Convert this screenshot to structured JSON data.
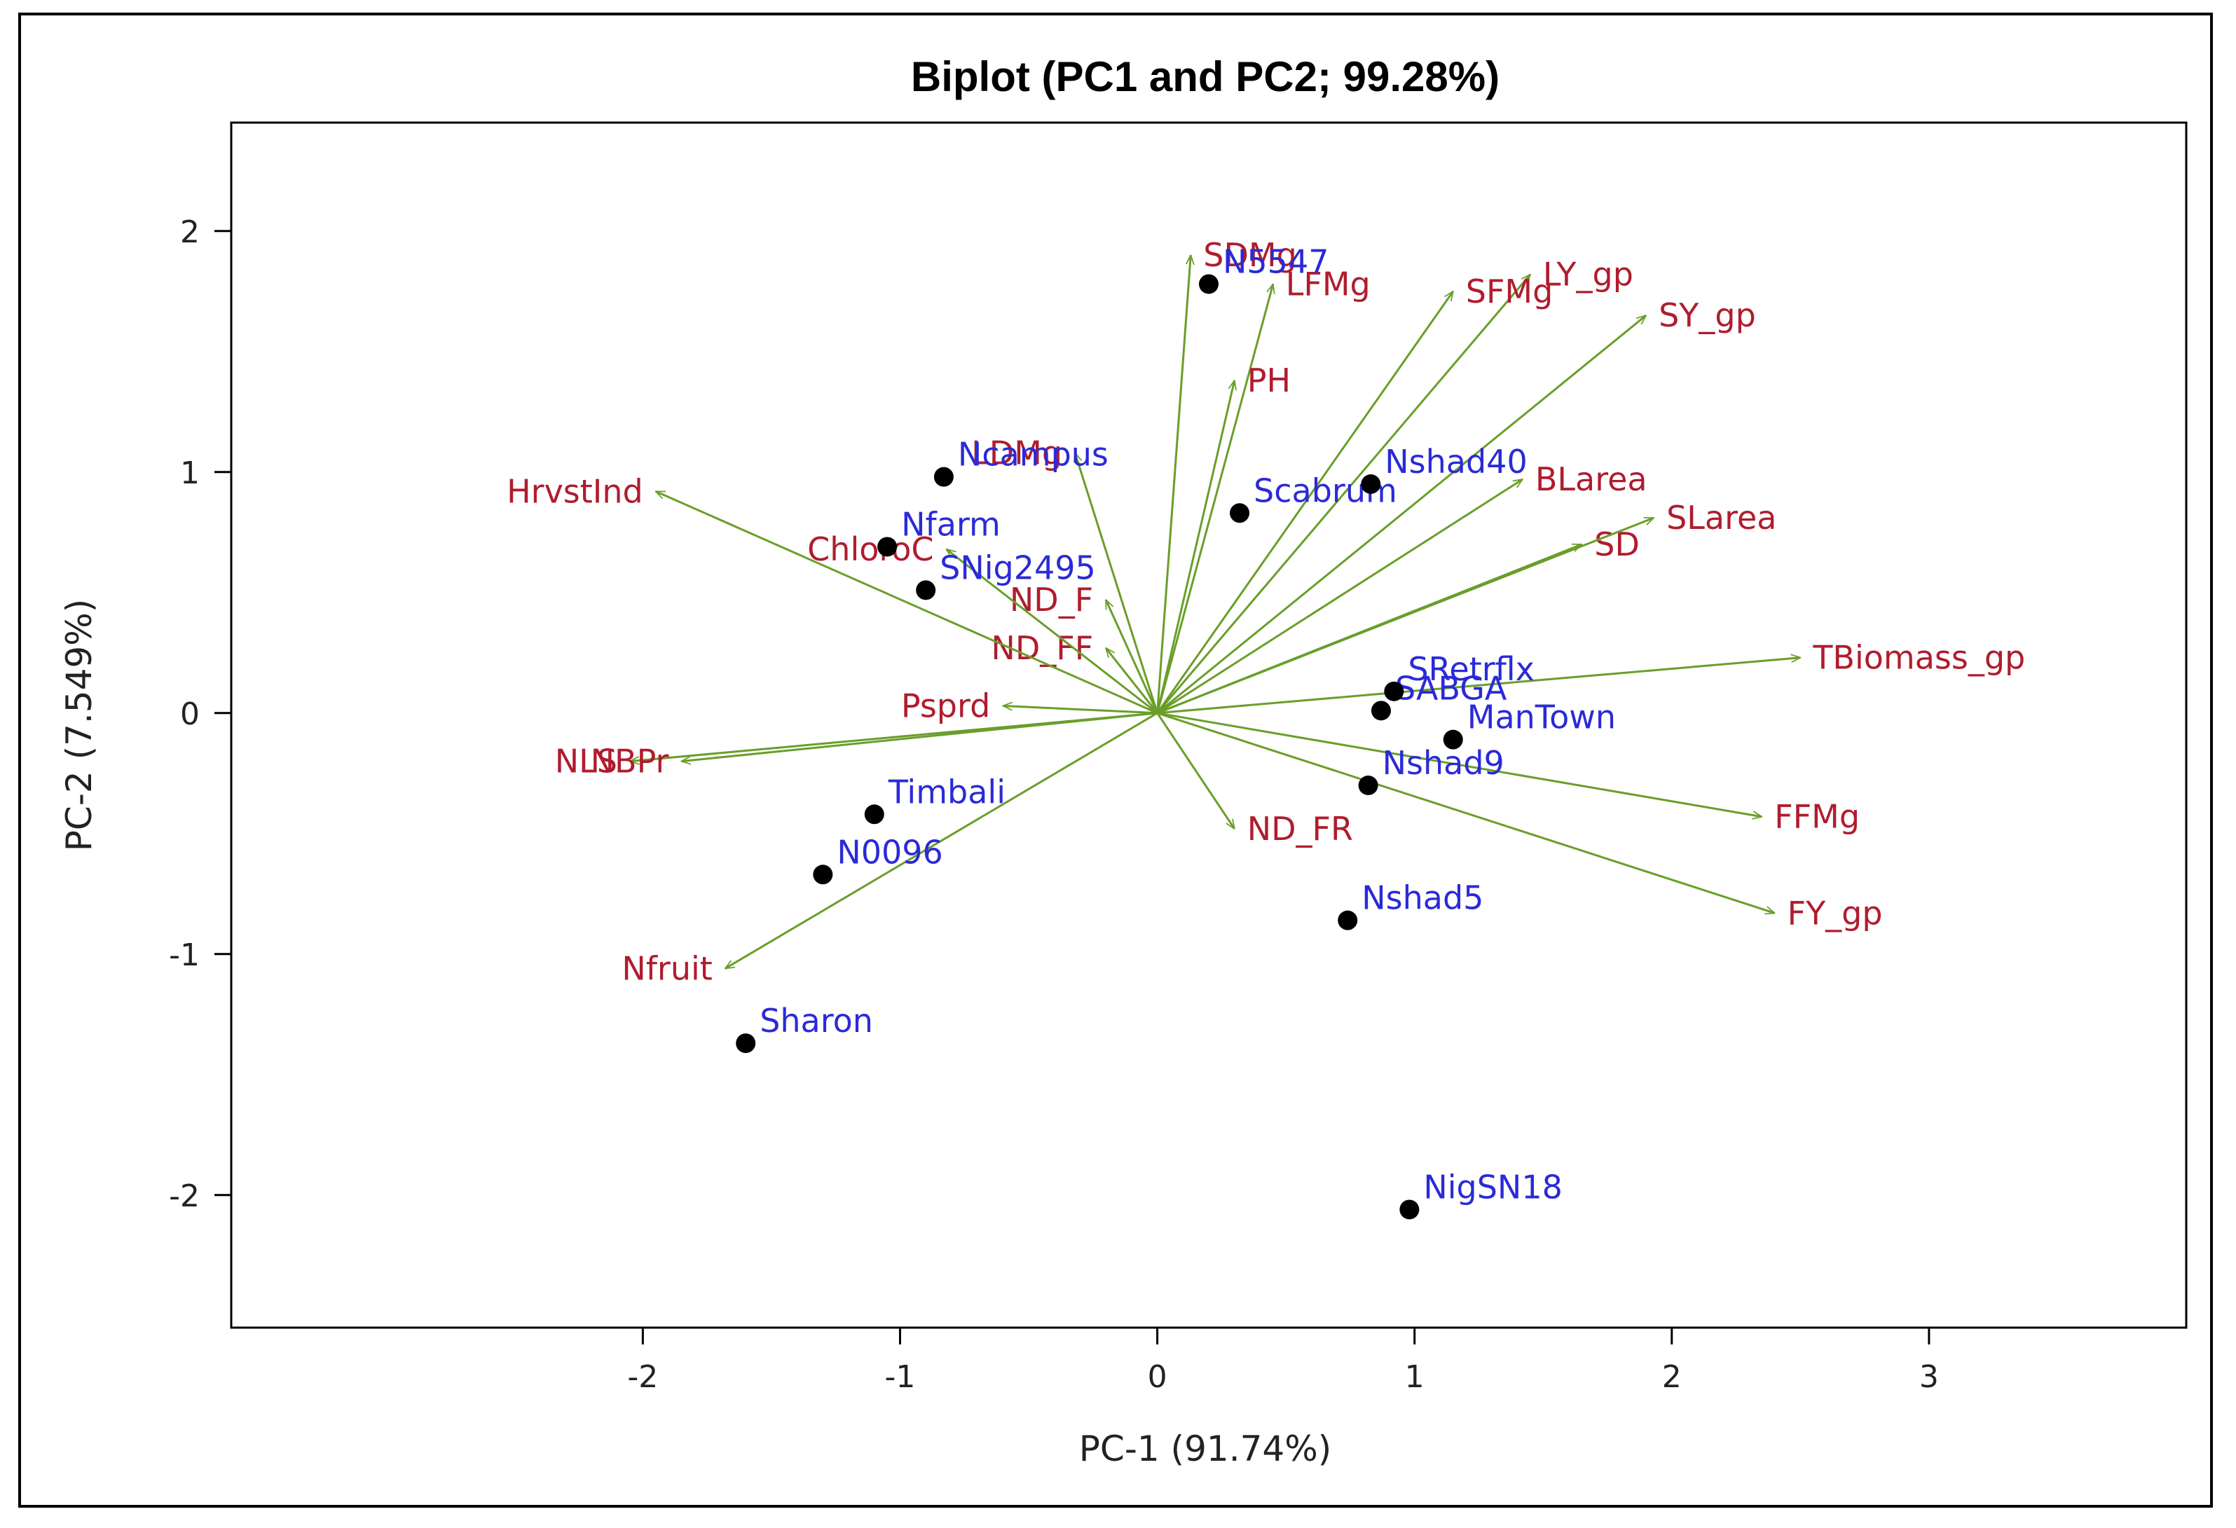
{
  "chart_data": {
    "type": "scatter",
    "subtype": "biplot",
    "title": "Biplot (PC1 and PC2; 99.28%)",
    "xlabel": "PC-1 (91.74%)",
    "ylabel": "PC-2 (7.549%)",
    "xlim": [
      -3.6,
      4.0
    ],
    "ylim": [
      -2.55,
      2.45
    ],
    "xticks": [
      -2,
      -1,
      0,
      1,
      2,
      3
    ],
    "yticks": [
      -2,
      -1,
      0,
      1,
      2
    ],
    "grid": false,
    "colors": {
      "vector": "#6a9e2a",
      "variable_label": "#b01c2e",
      "observation_label": "#2a2ad8",
      "point": "#000000"
    },
    "variables": [
      {
        "name": "SDMg",
        "x": 0.13,
        "y": 1.9
      },
      {
        "name": "LFMg",
        "x": 0.45,
        "y": 1.78
      },
      {
        "name": "PH",
        "x": 0.3,
        "y": 1.38
      },
      {
        "name": "LY_gp",
        "x": 1.45,
        "y": 1.82
      },
      {
        "name": "SFMg",
        "x": 1.15,
        "y": 1.75
      },
      {
        "name": "SY_gp",
        "x": 1.9,
        "y": 1.65
      },
      {
        "name": "BLarea",
        "x": 1.42,
        "y": 0.97
      },
      {
        "name": "SD",
        "x": 1.65,
        "y": 0.7
      },
      {
        "name": "SLarea",
        "x": 1.93,
        "y": 0.81
      },
      {
        "name": "TBiomass_gp",
        "x": 2.5,
        "y": 0.23
      },
      {
        "name": "FFMg",
        "x": 2.35,
        "y": -0.43
      },
      {
        "name": "FY_gp",
        "x": 2.4,
        "y": -0.83
      },
      {
        "name": "ND_FR",
        "x": 0.3,
        "y": -0.48
      },
      {
        "name": "Nfruit",
        "x": -1.68,
        "y": -1.06
      },
      {
        "name": "NLS",
        "x": -2.05,
        "y": -0.2
      },
      {
        "name": "NBPr",
        "x": -1.85,
        "y": -0.2
      },
      {
        "name": "Psprd",
        "x": -0.6,
        "y": 0.03
      },
      {
        "name": "ND_FF",
        "x": -0.2,
        "y": 0.27
      },
      {
        "name": "ND_F",
        "x": -0.2,
        "y": 0.47
      },
      {
        "name": "ChloroC",
        "x": -0.82,
        "y": 0.68
      },
      {
        "name": "LDMg",
        "x": -0.32,
        "y": 1.08
      },
      {
        "name": "HrvstInd",
        "x": -1.95,
        "y": 0.92
      }
    ],
    "observations": [
      {
        "name": "N5547",
        "x": 0.2,
        "y": 1.78
      },
      {
        "name": "Ncampus",
        "x": -0.83,
        "y": 0.98
      },
      {
        "name": "Nfarm",
        "x": -1.05,
        "y": 0.69
      },
      {
        "name": "SNig2495",
        "x": -0.9,
        "y": 0.51
      },
      {
        "name": "Scabrum",
        "x": 0.32,
        "y": 0.83
      },
      {
        "name": "Nshad40",
        "x": 0.83,
        "y": 0.95
      },
      {
        "name": "SABGA",
        "x": 0.87,
        "y": 0.01
      },
      {
        "name": "SRetrflx",
        "x": 0.92,
        "y": 0.09
      },
      {
        "name": "ManTown",
        "x": 1.15,
        "y": -0.11
      },
      {
        "name": "Nshad9",
        "x": 0.82,
        "y": -0.3
      },
      {
        "name": "Nshad5",
        "x": 0.74,
        "y": -0.86
      },
      {
        "name": "Timbali",
        "x": -1.1,
        "y": -0.42
      },
      {
        "name": "N0096",
        "x": -1.3,
        "y": -0.67
      },
      {
        "name": "Sharon",
        "x": -1.6,
        "y": -1.37
      },
      {
        "name": "NigSN18",
        "x": 0.98,
        "y": -2.06
      }
    ]
  }
}
